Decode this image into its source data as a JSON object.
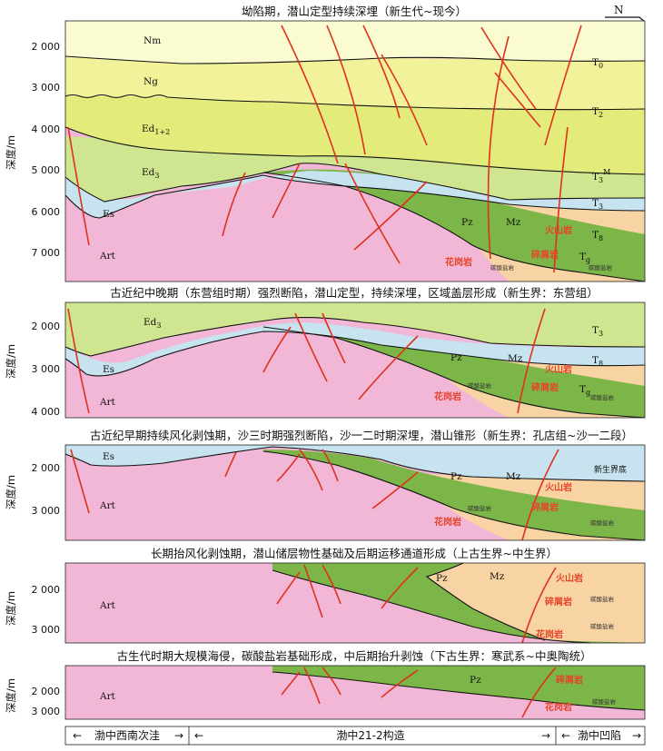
{
  "north_label": "N",
  "panels": [
    {
      "title": "坳陷期，潜山定型持续深埋（新生代~现今）",
      "y_ticks": [
        "2 000",
        "3 000",
        "4 000",
        "5 000",
        "6 000",
        "7 000"
      ],
      "y_label": "深度/m",
      "units": {
        "nm": "Nm",
        "ng": "Ng",
        "ed12": "Ed",
        "ed12_sub": "1+2",
        "ed3": "Ed",
        "ed3_sub": "3",
        "es": "Es",
        "art": "Art",
        "pz": "Pz",
        "mz": "Mz"
      },
      "horizons": {
        "t0": "T",
        "t0_sub": "0",
        "t2": "T",
        "t2_sub": "2",
        "t3m": "T",
        "t3m_sub": "3",
        "t3m_sup": "M",
        "t3": "T",
        "t3_sub": "3",
        "t8": "T",
        "t8_sub": "8",
        "tg": "T",
        "tg_sub": "g"
      },
      "lithology": {
        "volcanic": "火山岩",
        "clastic": "碎屑岩",
        "granite": "花岗岩",
        "carbonate": "碳酸盐岩"
      }
    },
    {
      "title": "古近纪中晚期（东营组时期）强烈断陷，潜山定型，持续深埋，区域盖层形成（新生界：东营组）",
      "y_ticks": [
        "2 000",
        "3 000",
        "4 000"
      ],
      "y_label": "深度/m",
      "units": {
        "ed3": "Ed",
        "ed3_sub": "3",
        "es": "Es",
        "art": "Art",
        "pz": "Pz",
        "mz": "Mz"
      },
      "horizons": {
        "t3": "T",
        "t3_sub": "3",
        "t8": "T",
        "t8_sub": "8",
        "tg": "T",
        "tg_sub": "g"
      },
      "lithology": {
        "volcanic": "火山岩",
        "clastic": "碎屑岩",
        "granite": "花岗岩",
        "carbonate": "碳酸盐岩"
      }
    },
    {
      "title": "古近纪早期持续风化剥蚀期，沙三时期强烈断陷，沙一二时期深埋，潜山锥形（新生界：孔店组~沙一二段）",
      "y_ticks": [
        "2 000",
        "3 000"
      ],
      "y_label": "深度/m",
      "units": {
        "es": "Es",
        "art": "Art",
        "pz": "Pz",
        "mz": "Mz",
        "cenozoic_base": "新生界底"
      },
      "lithology": {
        "volcanic": "火山岩",
        "clastic": "碎屑岩",
        "granite": "花岗岩",
        "carbonate": "碳酸盐岩"
      }
    },
    {
      "title": "长期抬风化剥蚀期，潜山储层物性基础及后期运移通道形成（上古生界~中生界）",
      "y_ticks": [
        "2 000",
        "3 000"
      ],
      "y_label": "深度/m",
      "units": {
        "art": "Art",
        "pz": "Pz",
        "mz": "Mz"
      },
      "lithology": {
        "volcanic": "火山岩",
        "clastic": "碎屑岩",
        "granite": "花岗岩",
        "carbonate": "碳酸盐岩"
      }
    },
    {
      "title": "古生代时期大规模海侵，碳酸盐岩基础形成，中后期抬升剥蚀（下古生界：寒武系~中奥陶统）",
      "y_ticks": [
        "2 000",
        "3 000"
      ],
      "y_label": "深度/m",
      "units": {
        "art": "Art",
        "pz": "Pz"
      },
      "lithology": {
        "clastic": "碎屑岩",
        "granite": "花岗岩",
        "carbonate": "碳酸盐岩"
      }
    }
  ],
  "regions": [
    "渤中西南次洼",
    "渤中21-2构造",
    "渤中凹陷"
  ],
  "colors": {
    "nm": "#fbfbd2",
    "ng": "#f2f29a",
    "ed12": "#e3ec7a",
    "ed3": "#cfe590",
    "es": "#c6e3ef",
    "art": "#f2b7d6",
    "pz": "#7cb548",
    "mz": "#f8d3a3",
    "fault": "#e0301e"
  }
}
